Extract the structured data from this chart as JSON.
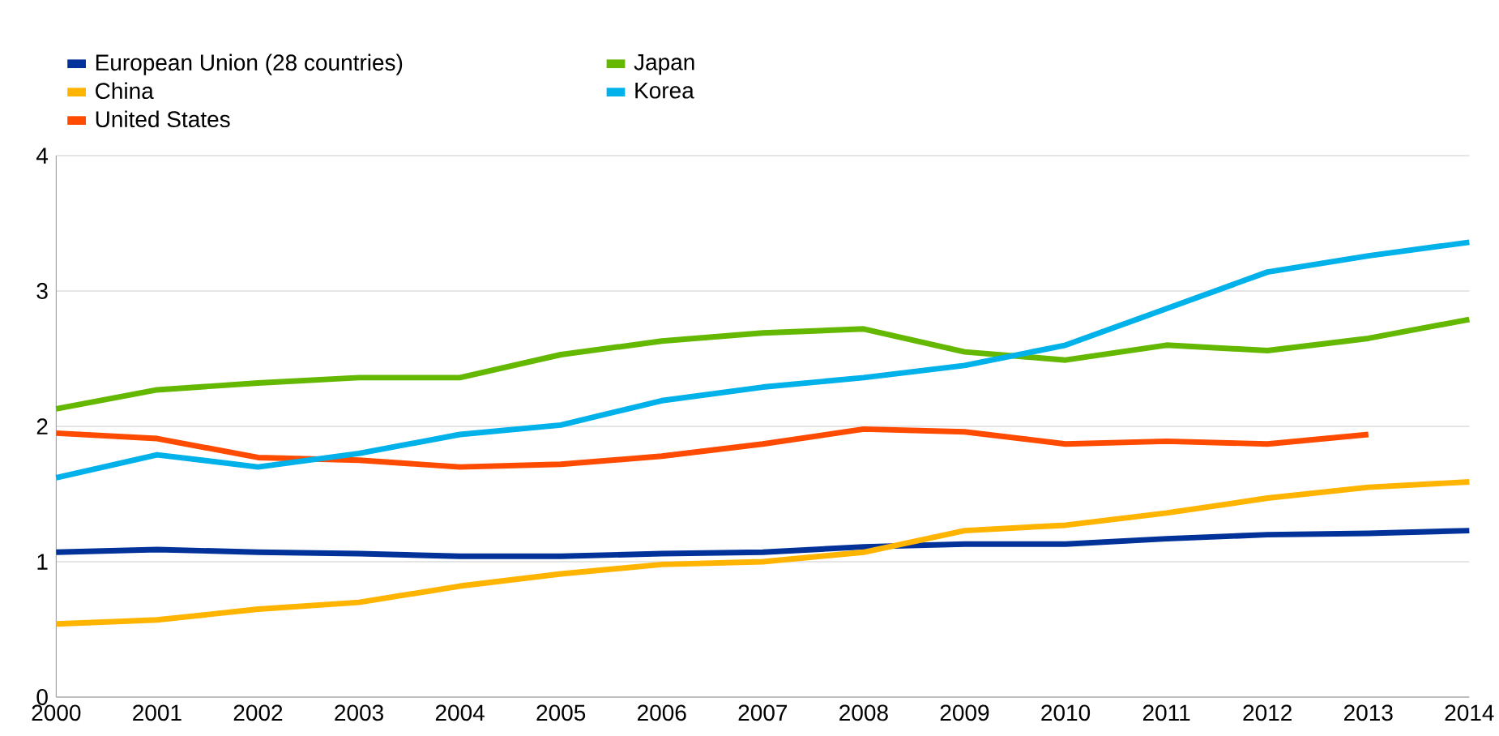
{
  "chart_data": {
    "type": "line",
    "x": [
      2000,
      2001,
      2002,
      2003,
      2004,
      2005,
      2006,
      2007,
      2008,
      2009,
      2010,
      2011,
      2012,
      2013,
      2014
    ],
    "series": [
      {
        "name": "European Union (28 countries)",
        "color": "#003299",
        "values": [
          1.07,
          1.09,
          1.07,
          1.06,
          1.04,
          1.04,
          1.06,
          1.07,
          1.11,
          1.13,
          1.13,
          1.17,
          1.2,
          1.21,
          1.23
        ]
      },
      {
        "name": "China",
        "color": "#ffb400",
        "values": [
          0.54,
          0.57,
          0.65,
          0.7,
          0.82,
          0.91,
          0.98,
          1.0,
          1.07,
          1.23,
          1.27,
          1.36,
          1.47,
          1.55,
          1.59
        ]
      },
      {
        "name": "United States",
        "color": "#ff4b00",
        "values": [
          1.95,
          1.91,
          1.77,
          1.75,
          1.7,
          1.72,
          1.78,
          1.87,
          1.98,
          1.96,
          1.87,
          1.89,
          1.87,
          1.94,
          null
        ]
      },
      {
        "name": "Japan",
        "color": "#65b800",
        "values": [
          2.13,
          2.27,
          2.32,
          2.36,
          2.36,
          2.53,
          2.63,
          2.69,
          2.72,
          2.55,
          2.49,
          2.6,
          2.56,
          2.65,
          2.79
        ]
      },
      {
        "name": "Korea",
        "color": "#00b1ea",
        "values": [
          1.62,
          1.79,
          1.7,
          1.8,
          1.94,
          2.01,
          2.19,
          2.29,
          2.36,
          2.45,
          2.6,
          2.87,
          3.14,
          3.26,
          3.36
        ]
      }
    ],
    "xlim": [
      2000,
      2014
    ],
    "xticks": [
      2000,
      2001,
      2002,
      2003,
      2004,
      2005,
      2006,
      2007,
      2008,
      2009,
      2010,
      2011,
      2012,
      2013,
      2014
    ],
    "ylim": [
      0,
      4
    ],
    "yticks": [
      0,
      1,
      2,
      3,
      4
    ],
    "grid": "y",
    "legend": "top left",
    "marker": "none",
    "line_style": "solid"
  }
}
